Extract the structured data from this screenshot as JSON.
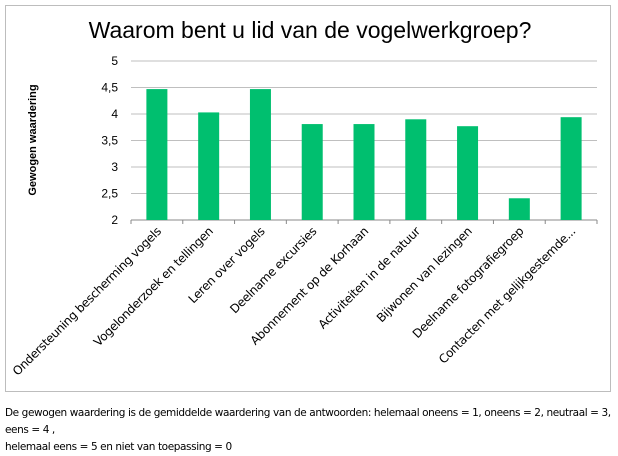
{
  "chart_data": {
    "type": "bar",
    "title": "Waarom bent u lid van de vogelwerkgroep?",
    "xlabel": "",
    "ylabel": "Gewogen waardering",
    "ylim": [
      2,
      5
    ],
    "yticks": [
      "2",
      "2,5",
      "3",
      "3,5",
      "4",
      "4,5",
      "5"
    ],
    "ytick_values": [
      2,
      2.5,
      3,
      3.5,
      4,
      4.5,
      5
    ],
    "grid": true,
    "bar_color": "#00BF6F",
    "categories": [
      "Ondersteuning bescherming vogels",
      "Vogelonderzoek en tellingen",
      "Leren over vogels",
      "Deelname excursies",
      "Abonnement op de Korhaan",
      "Activiteiten in de natuur",
      "Bijwonen van lezingen",
      "Deelname fotografiegroep",
      "Contacten met gelijkgestemde..."
    ],
    "values": [
      4.47,
      4.03,
      4.47,
      3.81,
      3.81,
      3.9,
      3.77,
      2.41,
      3.94
    ]
  },
  "footnote": {
    "line1": "De gewogen waardering is de gemiddelde waardering van de antwoorden: helemaal oneens = 1, oneens = 2, neutraal = 3, eens = 4 ,",
    "line2": "helemaal eens = 5 en niet van toepassing = 0"
  }
}
